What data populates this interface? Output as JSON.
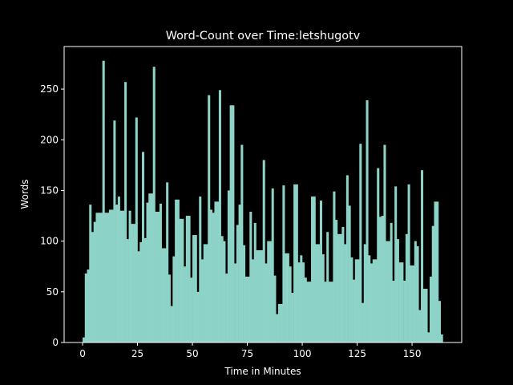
{
  "chart_data": {
    "type": "bar",
    "title": "Word-Count over Time:letshugotv",
    "x_label": "Time in Minutes",
    "y_label": "Words",
    "color": "#8dd3c7",
    "x": [
      0,
      1,
      2,
      3,
      4,
      5,
      6,
      7,
      8,
      9,
      10,
      11,
      12,
      13,
      14,
      15,
      16,
      17,
      18,
      19,
      20,
      21,
      22,
      23,
      24,
      25,
      26,
      27,
      28,
      29,
      30,
      31,
      32,
      33,
      34,
      35,
      36,
      37,
      38,
      39,
      40,
      41,
      42,
      43,
      44,
      45,
      46,
      47,
      48,
      49,
      50,
      51,
      52,
      53,
      54,
      55,
      56,
      57,
      58,
      59,
      60,
      61,
      62,
      63,
      64,
      65,
      66,
      67,
      68,
      69,
      70,
      71,
      72,
      73,
      74,
      75,
      76,
      77,
      78,
      79,
      80,
      81,
      82,
      83,
      84,
      85,
      86,
      87,
      88,
      89,
      90,
      91,
      92,
      93,
      94,
      95,
      96,
      97,
      98,
      99,
      100,
      101,
      102,
      103,
      104,
      105,
      106,
      107,
      108,
      109,
      110,
      111,
      112,
      113,
      114,
      115,
      116,
      117,
      118,
      119,
      120,
      121,
      122,
      123,
      124,
      125,
      126,
      127,
      128,
      129,
      130,
      131,
      132,
      133,
      134,
      135,
      136,
      137,
      138,
      139,
      140,
      141,
      142,
      143,
      144,
      145,
      146,
      147,
      148,
      149,
      150,
      151,
      152,
      153,
      154,
      155,
      156,
      157,
      158,
      159,
      160,
      161,
      162,
      163
    ],
    "values": [
      5,
      68,
      72,
      136,
      109,
      119,
      128,
      128,
      128,
      278,
      128,
      128,
      131,
      131,
      219,
      136,
      144,
      130,
      130,
      257,
      102,
      130,
      117,
      117,
      222,
      90,
      99,
      188,
      103,
      138,
      147,
      147,
      272,
      129,
      129,
      137,
      93,
      93,
      158,
      67,
      36,
      85,
      141,
      141,
      122,
      122,
      75,
      125,
      125,
      64,
      106,
      106,
      50,
      144,
      82,
      97,
      97,
      244,
      131,
      128,
      139,
      139,
      249,
      105,
      100,
      68,
      150,
      234,
      234,
      78,
      116,
      136,
      195,
      96,
      65,
      65,
      129,
      82,
      118,
      91,
      91,
      91,
      180,
      78,
      100,
      100,
      152,
      66,
      28,
      38,
      38,
      155,
      88,
      88,
      75,
      49,
      156,
      156,
      79,
      86,
      79,
      64,
      60,
      60,
      144,
      144,
      97,
      97,
      140,
      87,
      60,
      109,
      60,
      60,
      149,
      121,
      107,
      107,
      114,
      97,
      165,
      135,
      84,
      62,
      82,
      82,
      196,
      39,
      97,
      239,
      86,
      78,
      82,
      82,
      172,
      124,
      125,
      195,
      100,
      100,
      118,
      61,
      154,
      102,
      79,
      79,
      61,
      107,
      156,
      76,
      76,
      100,
      95,
      32,
      170,
      53,
      53,
      10,
      65,
      115,
      139,
      139,
      41,
      8
    ],
    "xlim": [
      -8.4,
      172.6
    ],
    "ylim": [
      0,
      292
    ],
    "xticks": [
      0,
      25,
      50,
      75,
      100,
      125,
      150
    ],
    "yticks": [
      0,
      50,
      100,
      150,
      200,
      250
    ]
  }
}
